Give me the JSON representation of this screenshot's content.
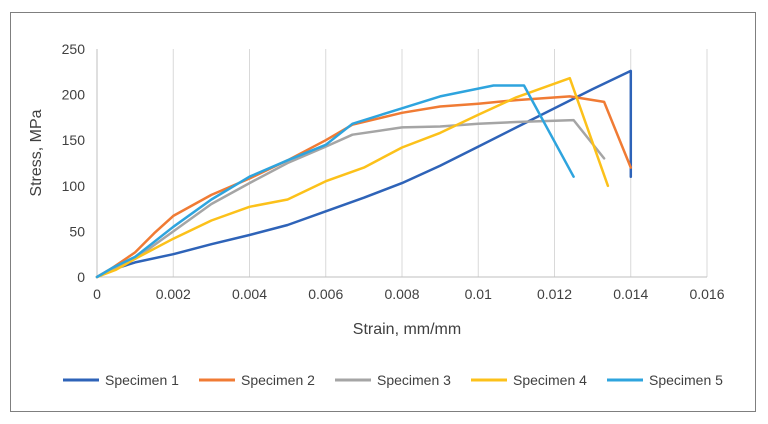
{
  "chart_data": {
    "type": "line",
    "title": "",
    "xlabel": "Strain, mm/mm",
    "ylabel": "Stress, MPa",
    "xlim": [
      0,
      0.016
    ],
    "ylim": [
      0,
      250
    ],
    "x_ticks": [
      "0",
      "0.002",
      "0.004",
      "0.006",
      "0.008",
      "0.01",
      "0.012",
      "0.014",
      "0.016"
    ],
    "y_ticks": [
      "0",
      "50",
      "100",
      "150",
      "200",
      "250"
    ],
    "grid": "vertical",
    "legend": "bottom",
    "series": [
      {
        "name": "Specimen 1",
        "color": "#2e63b8",
        "x": [
          0,
          0.0004,
          0.001,
          0.002,
          0.003,
          0.004,
          0.005,
          0.006,
          0.007,
          0.008,
          0.009,
          0.01,
          0.011,
          0.012,
          0.013,
          0.014,
          0.014
        ],
        "y": [
          0,
          8,
          16,
          25,
          36,
          46,
          57,
          72,
          87,
          103,
          122,
          143,
          164,
          185,
          206,
          226,
          110
        ]
      },
      {
        "name": "Specimen 2",
        "color": "#f07b34",
        "x": [
          0,
          0.0004,
          0.001,
          0.0015,
          0.002,
          0.003,
          0.004,
          0.005,
          0.006,
          0.0067,
          0.008,
          0.009,
          0.01,
          0.011,
          0.0124,
          0.0133,
          0.014
        ],
        "y": [
          0,
          10,
          27,
          48,
          67,
          90,
          108,
          128,
          150,
          167,
          180,
          187,
          190,
          194,
          198,
          192,
          120
        ]
      },
      {
        "name": "Specimen 3",
        "color": "#a5a5a5",
        "x": [
          0,
          0.0005,
          0.001,
          0.002,
          0.003,
          0.004,
          0.005,
          0.006,
          0.0067,
          0.008,
          0.009,
          0.01,
          0.011,
          0.0125,
          0.0133
        ],
        "y": [
          0,
          10,
          20,
          50,
          80,
          103,
          125,
          143,
          156,
          164,
          165,
          168,
          170,
          172,
          130
        ]
      },
      {
        "name": "Specimen 4",
        "color": "#fcc11a",
        "x": [
          0,
          0.0005,
          0.001,
          0.002,
          0.003,
          0.004,
          0.005,
          0.006,
          0.007,
          0.008,
          0.009,
          0.01,
          0.011,
          0.0124,
          0.0134
        ],
        "y": [
          0,
          8,
          20,
          42,
          62,
          77,
          85,
          105,
          120,
          142,
          158,
          178,
          197,
          218,
          100
        ]
      },
      {
        "name": "Specimen 5",
        "color": "#2ea4de",
        "x": [
          0,
          0.0004,
          0.001,
          0.002,
          0.003,
          0.004,
          0.005,
          0.006,
          0.0067,
          0.008,
          0.009,
          0.0104,
          0.0112,
          0.0125
        ],
        "y": [
          0,
          10,
          22,
          55,
          85,
          110,
          128,
          145,
          168,
          185,
          198,
          210,
          210,
          110
        ]
      }
    ]
  }
}
